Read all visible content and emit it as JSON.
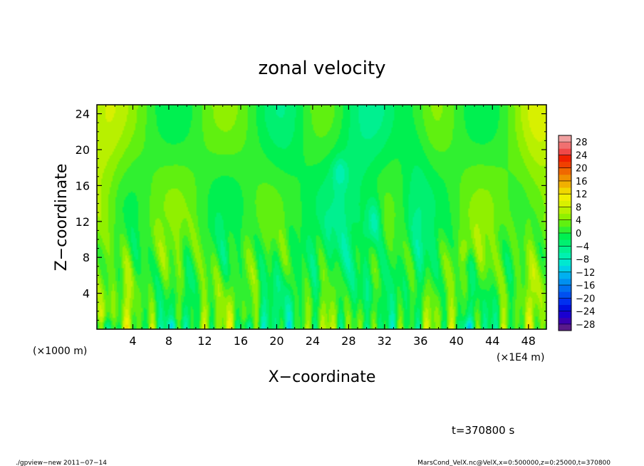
{
  "chart_data": {
    "type": "heatmap",
    "title": "zonal velocity",
    "xlabel": "X−coordinate",
    "ylabel": "Z−coordinate",
    "x_unit_left": "(×1000 m)",
    "x_unit_right": "(×1E4 m)",
    "x_ticks": [
      "4",
      "8",
      "12",
      "16",
      "20",
      "24",
      "28",
      "32",
      "36",
      "40",
      "44",
      "48"
    ],
    "x_tick_values": [
      4,
      8,
      12,
      16,
      20,
      24,
      28,
      32,
      36,
      40,
      44,
      48
    ],
    "xlim": [
      0,
      50
    ],
    "y_ticks": [
      "4",
      "8",
      "12",
      "16",
      "20",
      "24"
    ],
    "y_tick_values": [
      4,
      8,
      12,
      16,
      20,
      24
    ],
    "ylim": [
      0,
      25
    ],
    "colorbar": {
      "labels": [
        "28",
        "24",
        "20",
        "16",
        "12",
        "8",
        "4",
        "0",
        "−4",
        "−8",
        "−12",
        "−16",
        "−20",
        "−24",
        "−28"
      ],
      "levels": [
        -30,
        -28,
        -26,
        -24,
        -22,
        -20,
        -18,
        -16,
        -14,
        -12,
        -10,
        -8,
        -6,
        -4,
        -2,
        0,
        2,
        4,
        6,
        8,
        10,
        12,
        14,
        16,
        18,
        20,
        22,
        24,
        26,
        28,
        30
      ],
      "colors": [
        "#5a1a8a",
        "#3a00b0",
        "#1a00d0",
        "#0010e0",
        "#0030f0",
        "#0050f0",
        "#0070f0",
        "#0090f0",
        "#00b0f0",
        "#00d0e8",
        "#00e8d0",
        "#00f0b0",
        "#00f090",
        "#00f070",
        "#00f050",
        "#30f030",
        "#60f010",
        "#90f000",
        "#b8f000",
        "#d8f000",
        "#f0f000",
        "#f0d800",
        "#f0b000",
        "#f09000",
        "#f06800",
        "#f04000",
        "#f02000",
        "#f04848",
        "#f07070",
        "#f0a0a0"
      ]
    },
    "grid": false,
    "legend": "colorbar right",
    "annotation": "t=370800 s"
  },
  "footer": {
    "left": "./gpview−new  2011−07−14",
    "right": "MarsCond_VelX.nc@VelX,x=0:500000,z=0:25000,t=370800"
  }
}
